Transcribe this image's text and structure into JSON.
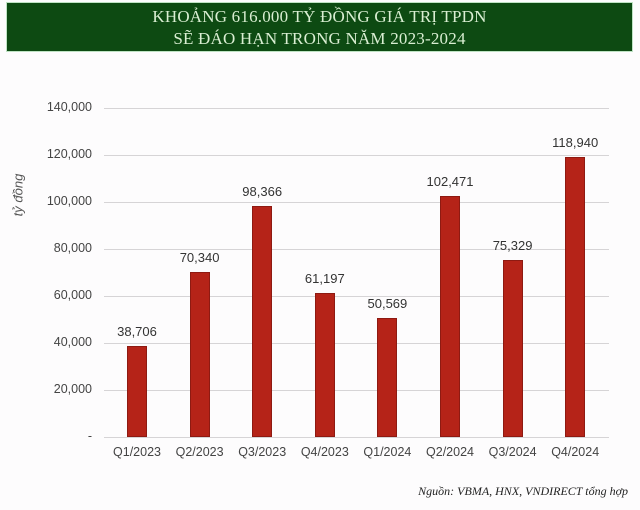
{
  "header": {
    "title_line1": "KHOẢNG 616.000 TỶ ĐỒNG GIÁ TRỊ TPDN",
    "title_line2": "SẼ ĐÁO HẠN TRONG NĂM 2023-2024"
  },
  "yaxis": {
    "label": "tỷ đồng",
    "ticks": [
      "-",
      "20,000",
      "40,000",
      "60,000",
      "80,000",
      "100,000",
      "120,000",
      "140,000"
    ]
  },
  "source": "Nguồn: VBMA, HNX, VNDIRECT tổng hợp",
  "colors": {
    "bar": "#b52318",
    "banner": "#0d4a12",
    "banner_text": "#d9eed2"
  },
  "chart_data": {
    "type": "bar",
    "title": "KHOẢNG 616.000 TỶ ĐỒNG GIÁ TRỊ TPDN SẼ ĐÁO HẠN TRONG NĂM 2023-2024",
    "categories": [
      "Q1/2023",
      "Q2/2023",
      "Q3/2023",
      "Q4/2023",
      "Q1/2024",
      "Q2/2024",
      "Q3/2024",
      "Q4/2024"
    ],
    "values": [
      38706,
      70340,
      98366,
      61197,
      50569,
      102471,
      75329,
      118940
    ],
    "value_labels": [
      "38,706",
      "70,340",
      "98,366",
      "61,197",
      "50,569",
      "102,471",
      "75,329",
      "118,940"
    ],
    "xlabel": "",
    "ylabel": "tỷ đồng",
    "ylim": [
      0,
      140000
    ],
    "yticks": [
      0,
      20000,
      40000,
      60000,
      80000,
      100000,
      120000,
      140000
    ],
    "grid": true,
    "legend": null,
    "source": "Nguồn: VBMA, HNX, VNDIRECT tổng hợp"
  }
}
